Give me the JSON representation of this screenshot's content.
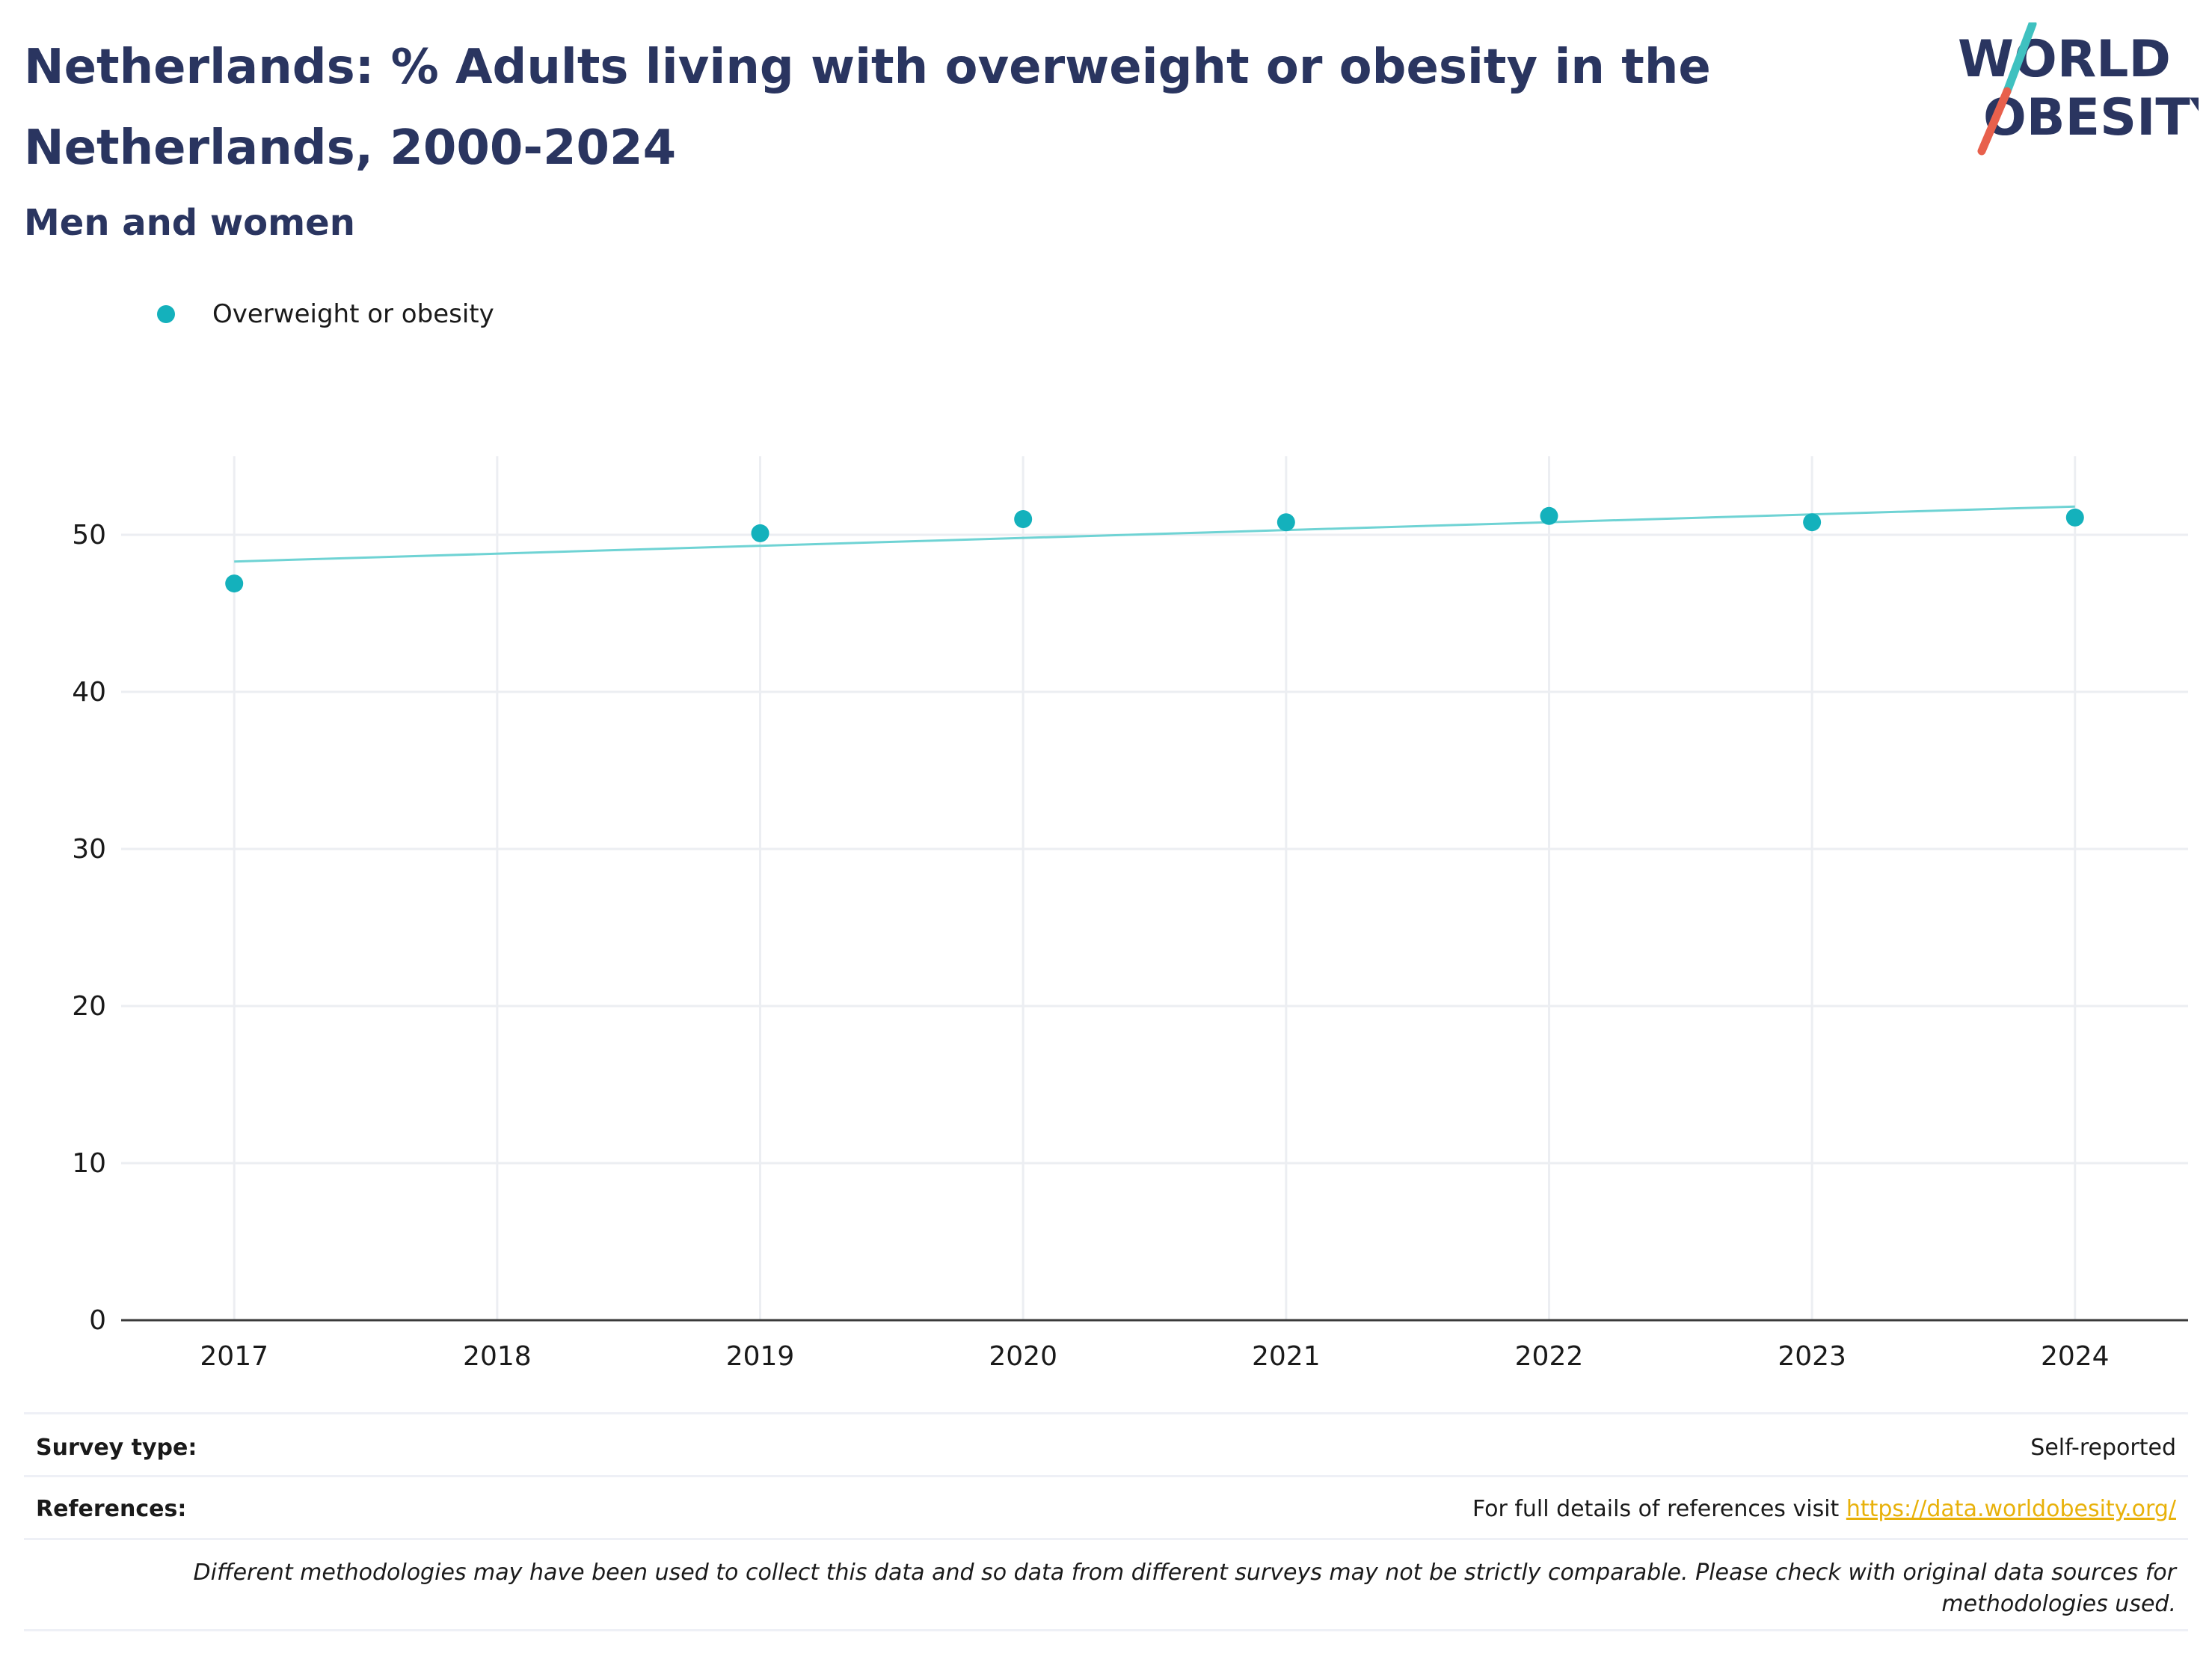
{
  "header": {
    "title": "Netherlands: % Adults living with overweight or obesity in the Netherlands, 2000-2024",
    "subtitle": "Men and women"
  },
  "logo": {
    "line1": "WORLD",
    "line2": "OBESITY",
    "colors": {
      "text": "#2a3560",
      "slash_top": "#3fc1c0",
      "slash_bottom": "#e8604c"
    }
  },
  "legend": {
    "label": "Overweight or obesity",
    "color": "#14b1bc"
  },
  "chart_data": {
    "type": "scatter",
    "title": "Netherlands: % Adults living with overweight or obesity in the Netherlands, 2000-2024",
    "subtitle": "Men and women",
    "xlabel": "",
    "ylabel": "",
    "x_ticks": [
      "2017",
      "2018",
      "2019",
      "2020",
      "2021",
      "2022",
      "2023",
      "2024"
    ],
    "y_ticks": [
      "0",
      "10",
      "20",
      "30",
      "40",
      "50"
    ],
    "xlim": [
      2016.57,
      2024.43
    ],
    "ylim": [
      0,
      55
    ],
    "grid": true,
    "legend_position": "top-left",
    "series": [
      {
        "name": "Overweight or obesity",
        "color": "#14b1bc",
        "x": [
          2017,
          2019,
          2020,
          2021,
          2022,
          2023,
          2024
        ],
        "y": [
          46.9,
          50.1,
          51.0,
          50.8,
          51.2,
          50.8,
          51.1
        ]
      }
    ],
    "trendline": {
      "color": "#6fd3d4",
      "x": [
        2017,
        2024
      ],
      "y": [
        48.3,
        51.8
      ]
    }
  },
  "footer": {
    "survey_label": "Survey type:",
    "survey_value": "Self-reported",
    "references_label": "References:",
    "references_text": "For full details of references visit ",
    "references_link": "https://data.worldobesity.org/",
    "note": "Different methodologies may have been used to collect this data and so data from different surveys may not be strictly comparable. Please check with original data sources for methodologies used."
  }
}
